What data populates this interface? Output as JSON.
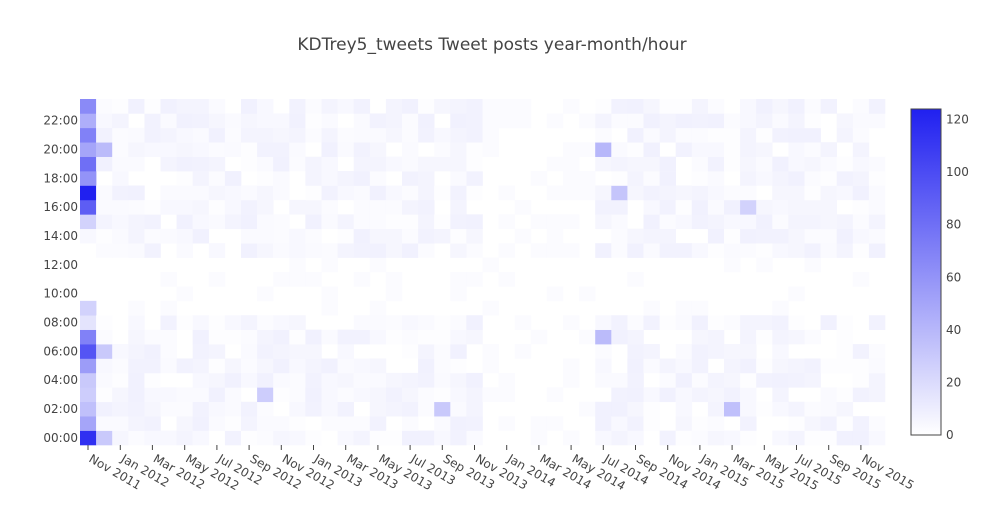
{
  "chart_data": {
    "type": "heatmap",
    "title": "KDTrey5_tweets Tweet posts year-month/hour",
    "x_start": "2011-11",
    "x_end": "2015-12",
    "x_tick_labels": [
      "Nov 2011",
      "Jan 2012",
      "Mar 2012",
      "May 2012",
      "Jul 2012",
      "Sep 2012",
      "Nov 2012",
      "Jan 2013",
      "Mar 2013",
      "May 2013",
      "Jul 2013",
      "Sep 2013",
      "Nov 2013",
      "Jan 2014",
      "Mar 2014",
      "May 2014",
      "Jul 2014",
      "Sep 2014",
      "Nov 2014",
      "Jan 2015",
      "Mar 2015",
      "May 2015",
      "Jul 2015",
      "Sep 2015",
      "Nov 2015"
    ],
    "y_categories": [
      0,
      1,
      2,
      3,
      4,
      5,
      6,
      7,
      8,
      9,
      10,
      11,
      12,
      13,
      14,
      15,
      16,
      17,
      18,
      19,
      20,
      21,
      22,
      23
    ],
    "y_tick_labels": [
      "00:00",
      "02:00",
      "04:00",
      "06:00",
      "08:00",
      "10:00",
      "12:00",
      "14:00",
      "16:00",
      "18:00",
      "20:00",
      "22:00"
    ],
    "y_tick_hours": [
      0,
      2,
      4,
      6,
      8,
      10,
      12,
      14,
      16,
      18,
      20,
      22
    ],
    "colorscale": {
      "min_color": "#ffffff",
      "max_color": "#2020f0",
      "zmin": 0,
      "zmax": 124
    },
    "colorbar_ticks": [
      0,
      20,
      40,
      60,
      80,
      100,
      120
    ],
    "notable_values": [
      {
        "month": "2011-11",
        "hour": 0,
        "value": 115
      },
      {
        "month": "2011-11",
        "hour": 1,
        "value": 50
      },
      {
        "month": "2011-11",
        "hour": 2,
        "value": 35
      },
      {
        "month": "2011-11",
        "hour": 3,
        "value": 28
      },
      {
        "month": "2011-11",
        "hour": 4,
        "value": 30
      },
      {
        "month": "2011-11",
        "hour": 5,
        "value": 55
      },
      {
        "month": "2011-11",
        "hour": 6,
        "value": 95
      },
      {
        "month": "2011-11",
        "hour": 7,
        "value": 70
      },
      {
        "month": "2011-11",
        "hour": 8,
        "value": 15
      },
      {
        "month": "2011-11",
        "hour": 9,
        "value": 25
      },
      {
        "month": "2011-11",
        "hour": 15,
        "value": 25
      },
      {
        "month": "2011-11",
        "hour": 16,
        "value": 90
      },
      {
        "month": "2011-11",
        "hour": 17,
        "value": 124
      },
      {
        "month": "2011-11",
        "hour": 18,
        "value": 60
      },
      {
        "month": "2011-11",
        "hour": 19,
        "value": 80
      },
      {
        "month": "2011-11",
        "hour": 20,
        "value": 50
      },
      {
        "month": "2011-11",
        "hour": 21,
        "value": 70
      },
      {
        "month": "2011-11",
        "hour": 22,
        "value": 45
      },
      {
        "month": "2011-11",
        "hour": 23,
        "value": 65
      },
      {
        "month": "2011-12",
        "hour": 0,
        "value": 30
      },
      {
        "month": "2011-12",
        "hour": 6,
        "value": 30
      },
      {
        "month": "2011-12",
        "hour": 20,
        "value": 38
      },
      {
        "month": "2014-07",
        "hour": 7,
        "value": 38
      },
      {
        "month": "2014-07",
        "hour": 20,
        "value": 40
      },
      {
        "month": "2014-08",
        "hour": 17,
        "value": 32
      },
      {
        "month": "2013-09",
        "hour": 2,
        "value": 30
      },
      {
        "month": "2012-10",
        "hour": 3,
        "value": 28
      },
      {
        "month": "2015-03",
        "hour": 2,
        "value": 35
      },
      {
        "month": "2015-04",
        "hour": 16,
        "value": 25
      }
    ]
  }
}
